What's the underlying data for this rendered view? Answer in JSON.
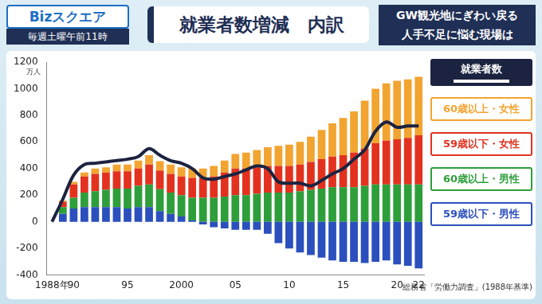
{
  "header": {
    "logo": "Bizスクエア",
    "schedule": "毎週土曜午前11時",
    "headline": [
      "GW観光地にぎわい戻る",
      "人手不足に悩む現場は"
    ]
  },
  "chart_data": {
    "type": "bar",
    "title": "就業者数増減　内訳",
    "y_label": "万人",
    "source": "総務省「労働力調査」(1988年基準)",
    "stacked": true,
    "grid": false,
    "categories": [
      "1988年",
      null,
      "90",
      null,
      null,
      null,
      null,
      "95",
      null,
      null,
      null,
      null,
      "2000",
      null,
      null,
      null,
      null,
      "05",
      null,
      null,
      null,
      null,
      "10",
      null,
      null,
      null,
      null,
      "15",
      null,
      null,
      null,
      null,
      "20",
      null,
      "22"
    ],
    "ylim": [
      -400,
      1200
    ],
    "yticks": [
      -400,
      -200,
      0,
      200,
      400,
      600,
      800,
      1000,
      1200
    ],
    "series": [
      {
        "name": "59歳以下・男性",
        "type": "bar",
        "color": "#2b4fbd",
        "values": [
          0,
          60,
          100,
          110,
          110,
          110,
          110,
          100,
          110,
          110,
          80,
          60,
          40,
          10,
          -20,
          -40,
          -50,
          -60,
          -60,
          -60,
          -90,
          -160,
          -200,
          -230,
          -250,
          -270,
          -290,
          -300,
          -300,
          -310,
          -300,
          -290,
          -320,
          -330,
          -350
        ]
      },
      {
        "name": "60歳以上・男性",
        "type": "bar",
        "color": "#2e9e3a",
        "values": [
          0,
          50,
          80,
          110,
          120,
          130,
          140,
          150,
          160,
          170,
          165,
          160,
          160,
          170,
          180,
          180,
          190,
          200,
          200,
          210,
          220,
          220,
          220,
          230,
          240,
          250,
          260,
          260,
          260,
          270,
          280,
          280,
          280,
          280,
          280
        ]
      },
      {
        "name": "59歳以下・女性",
        "type": "bar",
        "color": "#e2321f",
        "values": [
          0,
          40,
          100,
          120,
          130,
          130,
          130,
          130,
          130,
          150,
          140,
          140,
          140,
          150,
          150,
          160,
          180,
          200,
          200,
          200,
          200,
          200,
          200,
          200,
          210,
          220,
          230,
          240,
          260,
          280,
          310,
          330,
          340,
          350,
          370
        ]
      },
      {
        "name": "60歳以上・女性",
        "type": "bar",
        "color": "#f2a431",
        "values": [
          0,
          10,
          20,
          30,
          40,
          40,
          50,
          50,
          60,
          70,
          70,
          70,
          70,
          70,
          70,
          80,
          90,
          110,
          120,
          130,
          140,
          150,
          160,
          170,
          190,
          220,
          250,
          280,
          310,
          360,
          410,
          430,
          440,
          440,
          440
        ]
      },
      {
        "name": "就業者数",
        "type": "line",
        "color": "#1c2340",
        "values": [
          0,
          170,
          350,
          430,
          440,
          450,
          460,
          470,
          490,
          550,
          500,
          460,
          440,
          400,
          330,
          320,
          340,
          360,
          390,
          420,
          400,
          300,
          290,
          290,
          270,
          310,
          360,
          400,
          470,
          540,
          680,
          750,
          710,
          720,
          720
        ]
      }
    ]
  }
}
